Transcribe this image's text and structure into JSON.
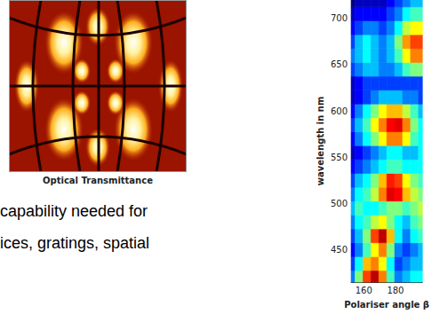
{
  "image": {
    "caption": "Optical Transmittance"
  },
  "text": {
    "lines": [
      "capability needed for",
      "ices, gratings, spatial"
    ]
  },
  "chart_data": {
    "type": "heatmap",
    "x_label": "Polariser angle β",
    "y_label": "wavelength in nm",
    "xlim": [
      152,
      197
    ],
    "xticks": [
      160,
      180
    ],
    "ylim": [
      415,
      720
    ],
    "yticks": [
      450,
      500,
      550,
      600,
      650,
      700
    ],
    "x": [
      152,
      157,
      162,
      167,
      172,
      177,
      182,
      187,
      192,
      197
    ],
    "y": [
      420,
      435,
      450,
      465,
      480,
      495,
      510,
      525,
      540,
      555,
      570,
      585,
      600,
      615,
      630,
      645,
      660,
      675,
      690,
      705,
      720
    ],
    "cells": [
      [
        0.4,
        0.6,
        0.85,
        0.95,
        0.8,
        0.55,
        0.4,
        0.45,
        0.5,
        0.5
      ],
      [
        0.35,
        0.5,
        0.75,
        0.8,
        0.7,
        0.5,
        0.35,
        0.4,
        0.45,
        0.45
      ],
      [
        0.3,
        0.4,
        0.55,
        0.7,
        0.8,
        0.6,
        0.4,
        0.35,
        0.4,
        0.45
      ],
      [
        0.35,
        0.45,
        0.6,
        0.85,
        0.95,
        0.75,
        0.5,
        0.4,
        0.5,
        0.55
      ],
      [
        0.4,
        0.5,
        0.55,
        0.65,
        0.7,
        0.6,
        0.5,
        0.45,
        0.55,
        0.6
      ],
      [
        0.45,
        0.55,
        0.5,
        0.5,
        0.55,
        0.6,
        0.6,
        0.55,
        0.6,
        0.65
      ],
      [
        0.4,
        0.5,
        0.55,
        0.65,
        0.8,
        0.92,
        0.9,
        0.75,
        0.65,
        0.6
      ],
      [
        0.35,
        0.45,
        0.5,
        0.6,
        0.75,
        0.88,
        0.85,
        0.7,
        0.6,
        0.55
      ],
      [
        0.3,
        0.35,
        0.4,
        0.45,
        0.5,
        0.55,
        0.55,
        0.5,
        0.5,
        0.5
      ],
      [
        0.25,
        0.3,
        0.35,
        0.4,
        0.45,
        0.5,
        0.5,
        0.45,
        0.45,
        0.5
      ],
      [
        0.3,
        0.4,
        0.5,
        0.6,
        0.7,
        0.8,
        0.8,
        0.7,
        0.55,
        0.5
      ],
      [
        0.35,
        0.45,
        0.55,
        0.7,
        0.8,
        0.9,
        0.92,
        0.8,
        0.6,
        0.5
      ],
      [
        0.3,
        0.4,
        0.5,
        0.6,
        0.7,
        0.75,
        0.75,
        0.65,
        0.55,
        0.45
      ],
      [
        0.25,
        0.3,
        0.35,
        0.4,
        0.45,
        0.45,
        0.45,
        0.4,
        0.4,
        0.35
      ],
      [
        0.25,
        0.3,
        0.35,
        0.35,
        0.35,
        0.35,
        0.35,
        0.35,
        0.35,
        0.35
      ],
      [
        0.35,
        0.4,
        0.45,
        0.45,
        0.4,
        0.4,
        0.45,
        0.55,
        0.6,
        0.6
      ],
      [
        0.4,
        0.45,
        0.5,
        0.45,
        0.4,
        0.45,
        0.55,
        0.7,
        0.8,
        0.8
      ],
      [
        0.35,
        0.45,
        0.5,
        0.45,
        0.4,
        0.45,
        0.6,
        0.78,
        0.85,
        0.85
      ],
      [
        0.3,
        0.35,
        0.4,
        0.4,
        0.35,
        0.4,
        0.5,
        0.65,
        0.7,
        0.7
      ],
      [
        0.25,
        0.3,
        0.3,
        0.3,
        0.3,
        0.35,
        0.4,
        0.5,
        0.55,
        0.55
      ],
      [
        0.2,
        0.25,
        0.25,
        0.25,
        0.25,
        0.3,
        0.35,
        0.4,
        0.45,
        0.45
      ]
    ],
    "color_range": [
      0.2,
      1
    ]
  }
}
